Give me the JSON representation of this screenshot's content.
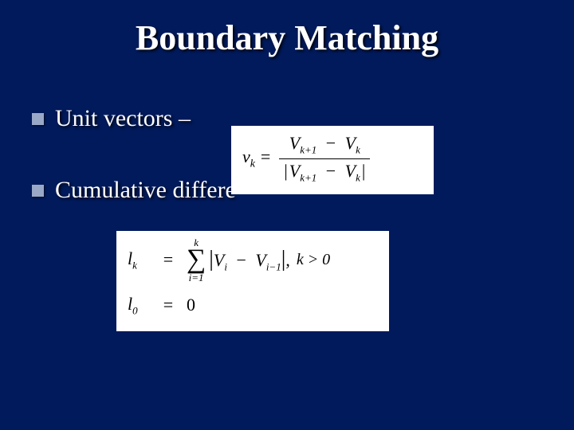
{
  "background_color": "#001a5c",
  "bullet_color": "#9aa8c8",
  "text_color": "#ffffff",
  "formula_bg": "#ffffff",
  "formula_fg": "#000000",
  "title": "Boundary Matching",
  "bullets": [
    {
      "text": "Unit vectors –"
    },
    {
      "text": "Cumulative differe"
    }
  ],
  "formula1": {
    "lhs_var": "v",
    "lhs_sub": "k",
    "num_a_var": "V",
    "num_a_sub": "k+1",
    "num_b_var": "V",
    "num_b_sub": "k",
    "den_a_var": "V",
    "den_a_sub": "k+1",
    "den_b_var": "V",
    "den_b_sub": "k"
  },
  "formula2": {
    "row1": {
      "lhs_var": "l",
      "lhs_sub": "k",
      "sum_top": "k",
      "sum_bot": "i=1",
      "term_a_var": "V",
      "term_a_sub": "i",
      "term_b_var": "V",
      "term_b_sub": "i−1",
      "cond": "k > 0"
    },
    "row2": {
      "lhs_var": "l",
      "lhs_sub": "0",
      "rhs": "0"
    }
  }
}
